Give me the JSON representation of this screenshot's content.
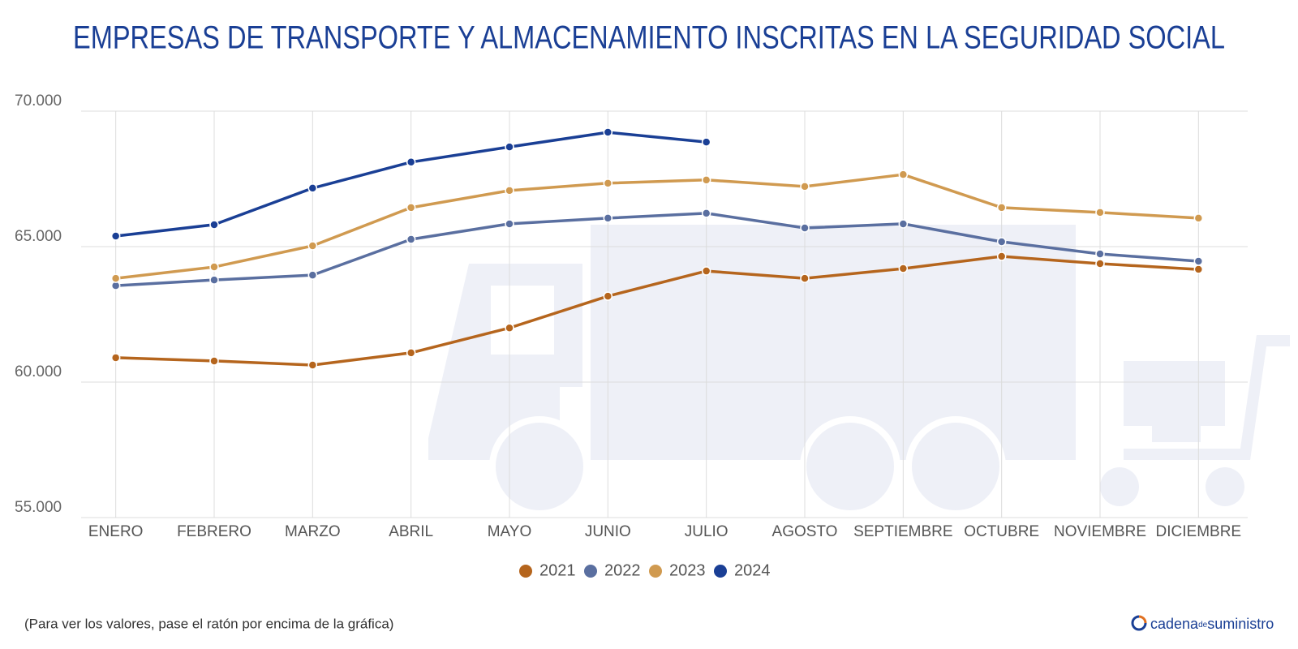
{
  "chart_data": {
    "type": "line",
    "title": "EMPRESAS DE TRANSPORTE Y ALMACENAMIENTO INSCRITAS EN LA SEGURIDAD SOCIAL",
    "categories": [
      "ENERO",
      "FEBRERO",
      "MARZO",
      "ABRIL",
      "MAYO",
      "JUNIO",
      "JULIO",
      "AGOSTO",
      "SEPTIEMBRE",
      "OCTUBRE",
      "NOVIEMBRE",
      "DICIEMBRE"
    ],
    "series": [
      {
        "name": "2021",
        "color": "#b5651d",
        "values": [
          60900,
          60780,
          60630,
          61080,
          62000,
          63170,
          64100,
          63830,
          64190,
          64640,
          64370,
          64160
        ]
      },
      {
        "name": "2022",
        "color": "#5a6fa0",
        "values": [
          63560,
          63770,
          63950,
          65270,
          65840,
          66050,
          66230,
          65690,
          65840,
          65180,
          64730,
          64460
        ]
      },
      {
        "name": "2023",
        "color": "#d09a50",
        "values": [
          63830,
          64250,
          65030,
          66440,
          67070,
          67340,
          67460,
          67220,
          67660,
          66440,
          66260,
          66050
        ]
      },
      {
        "name": "2024",
        "color": "#1a3f95",
        "values": [
          65390,
          65810,
          67160,
          68120,
          68680,
          69220,
          68860,
          null,
          null,
          null,
          null,
          null
        ]
      }
    ],
    "ylim": [
      55000,
      70000
    ],
    "yticks": [
      {
        "value": 55000,
        "label": "55.000"
      },
      {
        "value": 60000,
        "label": "60.000"
      },
      {
        "value": 65000,
        "label": "65.000"
      },
      {
        "value": 70000,
        "label": "70.000"
      }
    ],
    "grid": true,
    "legend": "bottom"
  },
  "footer": {
    "note": "(Para ver los valores, pase el ratón por encima de la gráfica)",
    "brand": "cadena",
    "brand_small": "de",
    "brand_end": "suministro"
  }
}
